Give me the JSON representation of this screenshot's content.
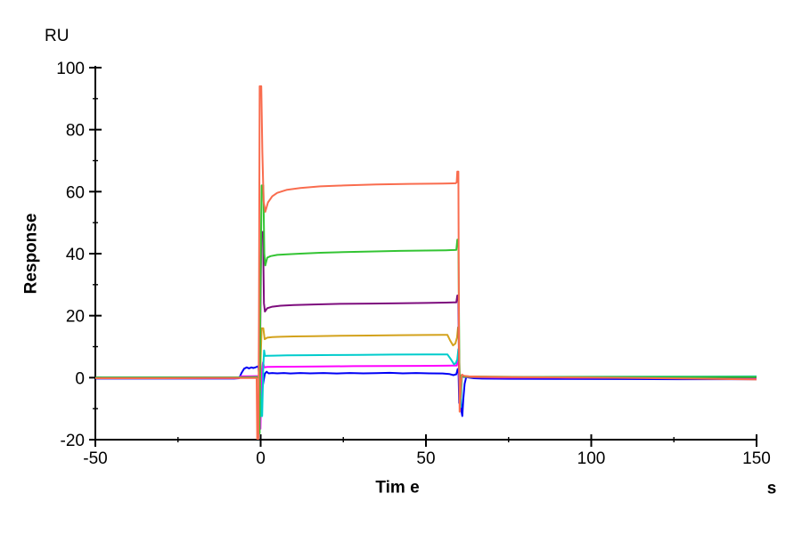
{
  "labels": {
    "y_unit": "RU",
    "y_axis": "Response",
    "x_axis": "Tim e",
    "x_unit": "s"
  },
  "chart_data": {
    "type": "line",
    "title": "",
    "xlabel": "Tim e",
    "x_unit": "s",
    "ylabel": "Response",
    "y_unit": "RU",
    "xlim": [
      -50,
      150
    ],
    "ylim": [
      -20,
      100
    ],
    "x_major_ticks": [
      -50,
      0,
      50,
      100,
      150
    ],
    "x_minor_ticks": [
      -25,
      25,
      75,
      125
    ],
    "y_major_ticks": [
      100,
      80,
      60,
      40,
      20,
      0,
      -20
    ],
    "y_minor_ticks": [
      90,
      70,
      50,
      30,
      10,
      -10
    ],
    "grid": false,
    "legend_position": "none",
    "axis_color": "#000000",
    "description": "SPR sensorgram: seven concentration curves, injection from t=0 s to t=60 s with sharp injection artifacts, association plateaus, and return to baseline after dissociation.",
    "association_window_s": [
      0,
      60
    ],
    "series": [
      {
        "name": "blue",
        "color": "#0000f5",
        "plateau_ru": 1.5,
        "points": [
          [
            -50,
            -0.3
          ],
          [
            -30,
            -0.3
          ],
          [
            -15,
            -0.3
          ],
          [
            -8,
            -0.3
          ],
          [
            -6.5,
            -0.2
          ],
          [
            -5.8,
            1.5
          ],
          [
            -5,
            2.9
          ],
          [
            -4.2,
            3.3
          ],
          [
            -3.5,
            3.0
          ],
          [
            -2.8,
            3.3
          ],
          [
            -2.2,
            3.1
          ],
          [
            -1.6,
            3.3
          ],
          [
            -1.1,
            3.5
          ],
          [
            -0.7,
            3.7
          ],
          [
            -0.4,
            0
          ],
          [
            -0.15,
            -3
          ],
          [
            0.2,
            -4.6
          ],
          [
            0.5,
            -3.5
          ],
          [
            0.9,
            -1
          ],
          [
            1.3,
            1.3
          ],
          [
            1.8,
            1.9
          ],
          [
            2.4,
            1.4
          ],
          [
            3.5,
            1.5
          ],
          [
            5,
            1.4
          ],
          [
            7,
            1.5
          ],
          [
            9,
            1.35
          ],
          [
            12,
            1.5
          ],
          [
            15,
            1.4
          ],
          [
            19,
            1.5
          ],
          [
            23,
            1.35
          ],
          [
            27,
            1.5
          ],
          [
            31,
            1.4
          ],
          [
            35,
            1.45
          ],
          [
            39,
            1.55
          ],
          [
            43,
            1.4
          ],
          [
            47,
            1.5
          ],
          [
            51,
            1.4
          ],
          [
            55,
            1.35
          ],
          [
            57,
            1.2
          ],
          [
            58.3,
            0.8
          ],
          [
            59.2,
            1.1
          ],
          [
            59.6,
            2.8
          ],
          [
            59.85,
            2.8
          ],
          [
            60.05,
            -8.2
          ],
          [
            60.25,
            -3.2
          ],
          [
            60.5,
            -6
          ],
          [
            60.75,
            -11
          ],
          [
            61,
            -12.4
          ],
          [
            61.3,
            -7
          ],
          [
            61.7,
            -2
          ],
          [
            62.2,
            0.3
          ],
          [
            63,
            0
          ],
          [
            64.5,
            -0.2
          ],
          [
            67,
            -0.3
          ],
          [
            75,
            -0.35
          ],
          [
            90,
            -0.4
          ],
          [
            110,
            -0.45
          ],
          [
            130,
            -0.5
          ],
          [
            150,
            -0.5
          ]
        ]
      },
      {
        "name": "magenta",
        "color": "#ff00ff",
        "plateau_ru": 3.8,
        "points": [
          [
            -50,
            -0.1
          ],
          [
            -25,
            -0.1
          ],
          [
            -10,
            -0.1
          ],
          [
            -6.5,
            -0.1
          ],
          [
            -6,
            0.4
          ],
          [
            -3,
            0.45
          ],
          [
            -1,
            0.5
          ],
          [
            -0.6,
            0.5
          ],
          [
            -0.45,
            -4
          ],
          [
            -0.3,
            -16.5
          ],
          [
            -0.05,
            -16.5
          ],
          [
            0.3,
            2
          ],
          [
            0.7,
            4.9
          ],
          [
            1.1,
            3.3
          ],
          [
            2,
            3.45
          ],
          [
            5,
            3.5
          ],
          [
            10,
            3.55
          ],
          [
            18,
            3.6
          ],
          [
            28,
            3.7
          ],
          [
            38,
            3.75
          ],
          [
            48,
            3.8
          ],
          [
            56,
            3.85
          ],
          [
            59.3,
            3.9
          ],
          [
            59.6,
            6.2
          ],
          [
            59.85,
            6.2
          ],
          [
            60.1,
            -1
          ],
          [
            60.4,
            -5.2
          ],
          [
            60.8,
            0.5
          ],
          [
            61.5,
            0.2
          ],
          [
            64,
            0.1
          ],
          [
            72,
            0.05
          ],
          [
            90,
            0
          ],
          [
            115,
            -0.05
          ],
          [
            140,
            -0.1
          ],
          [
            150,
            -0.1
          ]
        ]
      },
      {
        "name": "cyan",
        "color": "#00cccc",
        "plateau_ru": 7.5,
        "points": [
          [
            -50,
            0
          ],
          [
            -20,
            0
          ],
          [
            -8,
            0
          ],
          [
            -1.5,
            0.1
          ],
          [
            -0.3,
            0.1
          ],
          [
            -0.1,
            -2
          ],
          [
            0.15,
            -12.4
          ],
          [
            0.45,
            -12.4
          ],
          [
            0.8,
            4
          ],
          [
            1.05,
            8.8
          ],
          [
            1.3,
            7.0
          ],
          [
            2,
            7.05
          ],
          [
            4,
            7.1
          ],
          [
            8,
            7.2
          ],
          [
            14,
            7.25
          ],
          [
            22,
            7.3
          ],
          [
            30,
            7.35
          ],
          [
            40,
            7.45
          ],
          [
            50,
            7.5
          ],
          [
            56.5,
            7.5
          ],
          [
            57.5,
            6
          ],
          [
            58.5,
            4.3
          ],
          [
            59.1,
            4.8
          ],
          [
            59.5,
            6
          ],
          [
            59.8,
            9.2
          ],
          [
            60,
            9.2
          ],
          [
            60.2,
            -3
          ],
          [
            60.5,
            -9.5
          ],
          [
            60.9,
            0.4
          ],
          [
            61.6,
            0.2
          ],
          [
            64,
            0.2
          ],
          [
            70,
            0.2
          ],
          [
            85,
            0.25
          ],
          [
            105,
            0.3
          ],
          [
            130,
            0.35
          ],
          [
            150,
            0.4
          ]
        ]
      },
      {
        "name": "gold",
        "color": "#d3a21c",
        "plateau_ru": 13.8,
        "points": [
          [
            -50,
            0
          ],
          [
            -20,
            0
          ],
          [
            -8,
            0
          ],
          [
            -1.5,
            0.1
          ],
          [
            -0.4,
            0.1
          ],
          [
            -0.25,
            -5
          ],
          [
            0,
            6
          ],
          [
            0.3,
            15.9
          ],
          [
            0.8,
            15.9
          ],
          [
            1.2,
            12.4
          ],
          [
            2,
            12.9
          ],
          [
            3.5,
            13.1
          ],
          [
            6,
            13.2
          ],
          [
            10,
            13.3
          ],
          [
            16,
            13.4
          ],
          [
            24,
            13.5
          ],
          [
            33,
            13.6
          ],
          [
            42,
            13.7
          ],
          [
            50,
            13.75
          ],
          [
            55,
            13.8
          ],
          [
            56.5,
            13.8
          ],
          [
            57.3,
            12
          ],
          [
            58.2,
            10.4
          ],
          [
            58.9,
            11
          ],
          [
            59.4,
            13
          ],
          [
            59.7,
            16.2
          ],
          [
            59.9,
            16.2
          ],
          [
            60.1,
            0
          ],
          [
            60.4,
            -6.5
          ],
          [
            60.8,
            0.8
          ],
          [
            61.5,
            0.5
          ],
          [
            63,
            0.4
          ],
          [
            68,
            0.3
          ],
          [
            80,
            0.25
          ],
          [
            100,
            0.2
          ],
          [
            125,
            0.2
          ],
          [
            150,
            0.2
          ]
        ]
      },
      {
        "name": "purple",
        "color": "#7d0c7d",
        "plateau_ru": 24.2,
        "points": [
          [
            -50,
            0
          ],
          [
            -20,
            0
          ],
          [
            -8,
            0
          ],
          [
            -1.5,
            0.1
          ],
          [
            -0.5,
            0.1
          ],
          [
            -0.35,
            -8
          ],
          [
            -0.15,
            10
          ],
          [
            0.2,
            47
          ],
          [
            0.7,
            47
          ],
          [
            1,
            24
          ],
          [
            1.3,
            21.3
          ],
          [
            2,
            22.4
          ],
          [
            3.5,
            22.9
          ],
          [
            6,
            23.2
          ],
          [
            10,
            23.4
          ],
          [
            16,
            23.6
          ],
          [
            24,
            23.8
          ],
          [
            33,
            23.9
          ],
          [
            42,
            24.0
          ],
          [
            50,
            24.1
          ],
          [
            56,
            24.2
          ],
          [
            59.2,
            24.3
          ],
          [
            59.5,
            26.5
          ],
          [
            59.8,
            26.5
          ],
          [
            60,
            3
          ],
          [
            60.3,
            -3.5
          ],
          [
            60.7,
            0.5
          ],
          [
            61.4,
            0.3
          ],
          [
            64,
            0.2
          ],
          [
            75,
            0.2
          ],
          [
            95,
            0.1
          ],
          [
            120,
            0.1
          ],
          [
            150,
            0.1
          ]
        ]
      },
      {
        "name": "green",
        "color": "#33c433",
        "plateau_ru": 41.0,
        "points": [
          [
            -50,
            0
          ],
          [
            -20,
            0
          ],
          [
            -8,
            0
          ],
          [
            -1.5,
            0.2
          ],
          [
            -0.6,
            0.2
          ],
          [
            -0.45,
            -18
          ],
          [
            -0.3,
            -18
          ],
          [
            -0.1,
            25
          ],
          [
            0.3,
            62
          ],
          [
            0.8,
            62
          ],
          [
            1.1,
            40
          ],
          [
            1.4,
            36.2
          ],
          [
            2,
            38.7
          ],
          [
            3,
            39.2
          ],
          [
            5,
            39.6
          ],
          [
            8,
            39.8
          ],
          [
            12,
            40.0
          ],
          [
            18,
            40.3
          ],
          [
            25,
            40.5
          ],
          [
            33,
            40.7
          ],
          [
            42,
            40.9
          ],
          [
            50,
            41.0
          ],
          [
            56,
            41.1
          ],
          [
            59.2,
            41.2
          ],
          [
            59.5,
            44.5
          ],
          [
            59.8,
            44.5
          ],
          [
            60.1,
            5
          ],
          [
            60.3,
            -1.8
          ],
          [
            60.7,
            0.7
          ],
          [
            61.3,
            0.4
          ],
          [
            63,
            0.3
          ],
          [
            68,
            0.3
          ],
          [
            80,
            0.2
          ],
          [
            100,
            0.2
          ],
          [
            125,
            0.2
          ],
          [
            150,
            0.2
          ]
        ]
      },
      {
        "name": "orange",
        "color": "#f96c4e",
        "plateau_ru": 62.5,
        "points": [
          [
            -50,
            -0.2
          ],
          [
            -30,
            -0.2
          ],
          [
            -15,
            -0.1
          ],
          [
            -5,
            -0.1
          ],
          [
            -1.2,
            -0.1
          ],
          [
            -1,
            -24
          ],
          [
            -0.7,
            -24
          ],
          [
            -0.5,
            20
          ],
          [
            -0.3,
            94
          ],
          [
            0.2,
            94
          ],
          [
            0.5,
            73
          ],
          [
            0.9,
            57
          ],
          [
            1.4,
            53.5
          ],
          [
            2.2,
            56.5
          ],
          [
            3.5,
            58.5
          ],
          [
            5,
            59.6
          ],
          [
            8,
            60.6
          ],
          [
            12,
            61.2
          ],
          [
            18,
            61.7
          ],
          [
            25,
            62.0
          ],
          [
            35,
            62.3
          ],
          [
            45,
            62.5
          ],
          [
            55,
            62.6
          ],
          [
            59,
            62.7
          ],
          [
            59.3,
            63
          ],
          [
            59.5,
            66.5
          ],
          [
            59.8,
            66.5
          ],
          [
            60,
            10
          ],
          [
            60.2,
            -11
          ],
          [
            60.5,
            -2
          ],
          [
            60.9,
            1.0
          ],
          [
            61.5,
            0.6
          ],
          [
            63,
            0.4
          ],
          [
            66,
            0.3
          ],
          [
            72,
            0.2
          ],
          [
            85,
            0.1
          ],
          [
            100,
            0
          ],
          [
            115,
            -0.1
          ],
          [
            130,
            -0.3
          ],
          [
            150,
            -0.6
          ]
        ]
      }
    ]
  }
}
